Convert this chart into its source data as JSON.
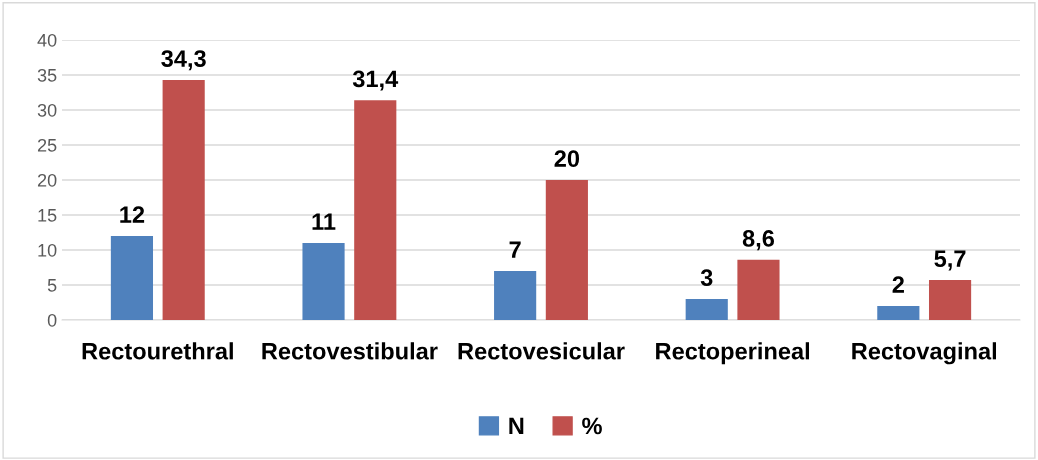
{
  "chart_data": {
    "type": "bar",
    "categories": [
      "Rectourethral",
      "Rectovestibular",
      "Rectovesicular",
      "Rectoperineal",
      "Rectovaginal"
    ],
    "series": [
      {
        "name": "N",
        "color": "#4f81bd",
        "values": [
          12,
          11,
          7,
          3,
          2
        ],
        "value_labels": [
          "12",
          "11",
          "7",
          "3",
          "2"
        ]
      },
      {
        "name": "%",
        "color": "#c0504d",
        "values": [
          34.3,
          31.4,
          20,
          8.6,
          5.7
        ],
        "value_labels": [
          "34,3",
          "31,4",
          "20",
          "8,6",
          "5,7"
        ]
      }
    ],
    "ylim": [
      0,
      40
    ],
    "yticks": [
      0,
      5,
      10,
      15,
      20,
      25,
      30,
      35,
      40
    ],
    "grid": "y",
    "legend": "bottom"
  }
}
